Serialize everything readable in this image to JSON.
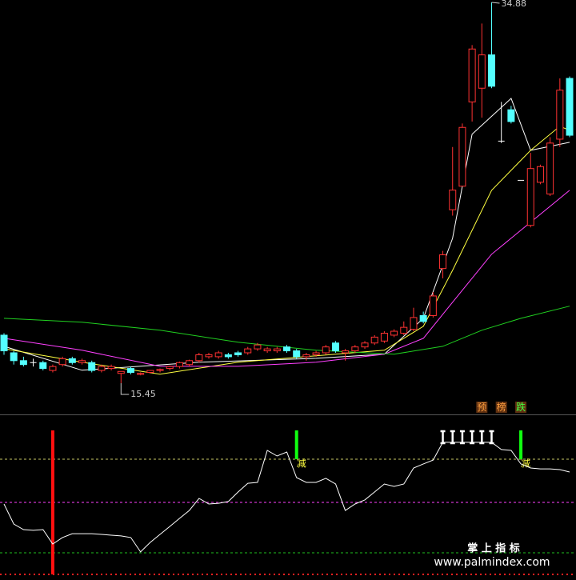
{
  "chart_data": [
    {
      "type": "candlestick",
      "ylim": [
        15,
        35
      ],
      "up_color": "#ff3232",
      "down_color": "#54ffff",
      "candles": [
        [
          17.9,
          18.0,
          16.9,
          17.1
        ],
        [
          17.0,
          17.1,
          16.4,
          16.6
        ],
        [
          16.6,
          16.8,
          16.3,
          16.4
        ],
        [
          16.5,
          16.7,
          16.3,
          16.5
        ],
        [
          16.5,
          16.6,
          16.1,
          16.2
        ],
        [
          16.1,
          16.4,
          16.0,
          16.3
        ],
        [
          16.4,
          16.8,
          16.3,
          16.7
        ],
        [
          16.7,
          16.8,
          16.4,
          16.5
        ],
        [
          16.5,
          16.7,
          16.4,
          16.6
        ],
        [
          16.5,
          16.6,
          16.0,
          16.1
        ],
        [
          16.1,
          16.4,
          16.0,
          16.3
        ],
        [
          16.2,
          16.4,
          16.1,
          16.3
        ],
        [
          15.95,
          16.05,
          15.45,
          16.05
        ],
        [
          16.2,
          16.3,
          15.9,
          16.0
        ],
        [
          15.9,
          16.0,
          15.85,
          15.95
        ],
        [
          16.0,
          16.1,
          15.95,
          16.1
        ],
        [
          16.1,
          16.2,
          16.0,
          16.15
        ],
        [
          16.2,
          16.35,
          16.1,
          16.3
        ],
        [
          16.3,
          16.55,
          16.2,
          16.5
        ],
        [
          16.4,
          16.65,
          16.3,
          16.6
        ],
        [
          16.6,
          17.0,
          16.5,
          16.9
        ],
        [
          16.8,
          17.0,
          16.7,
          16.9
        ],
        [
          16.8,
          17.1,
          16.7,
          17.0
        ],
        [
          16.9,
          17.0,
          16.7,
          16.8
        ],
        [
          17.0,
          17.1,
          16.8,
          16.9
        ],
        [
          17.0,
          17.3,
          16.9,
          17.2
        ],
        [
          17.2,
          17.5,
          17.1,
          17.4
        ],
        [
          17.1,
          17.3,
          17.0,
          17.2
        ],
        [
          17.1,
          17.3,
          17.0,
          17.2
        ],
        [
          17.3,
          17.4,
          17.0,
          17.1
        ],
        [
          17.1,
          17.2,
          16.7,
          16.8
        ],
        [
          16.8,
          17.0,
          16.6,
          16.9
        ],
        [
          16.9,
          17.1,
          16.8,
          17.0
        ],
        [
          17.0,
          17.4,
          16.9,
          17.3
        ],
        [
          17.5,
          17.6,
          17.0,
          17.1
        ],
        [
          17.0,
          17.2,
          16.6,
          17.1
        ],
        [
          17.1,
          17.4,
          17.0,
          17.3
        ],
        [
          17.3,
          17.6,
          17.2,
          17.5
        ],
        [
          17.5,
          17.9,
          17.4,
          17.8
        ],
        [
          17.6,
          18.1,
          17.5,
          18.0
        ],
        [
          17.9,
          18.2,
          17.8,
          18.1
        ],
        [
          18.0,
          18.6,
          17.9,
          18.3
        ],
        [
          18.2,
          19.3,
          18.1,
          18.8
        ],
        [
          18.9,
          19.1,
          18.5,
          18.6
        ],
        [
          18.9,
          20.1,
          18.8,
          19.9
        ],
        [
          21.3,
          22.2,
          20.8,
          22.0
        ],
        [
          24.3,
          27.5,
          24.0,
          25.3
        ],
        [
          25.5,
          28.7,
          25.5,
          28.5
        ],
        [
          29.8,
          32.7,
          28.8,
          32.5
        ],
        [
          30.5,
          33.8,
          29.0,
          32.2
        ],
        [
          32.2,
          34.88,
          30.5,
          30.6
        ],
        [
          27.8,
          29.8,
          27.7,
          27.8
        ],
        [
          29.4,
          29.6,
          28.7,
          28.8
        ],
        [
          25.8,
          25.8,
          25.8,
          25.8
        ],
        [
          23.5,
          27.2,
          23.4,
          26.4
        ],
        [
          25.7,
          26.6,
          25.6,
          26.5
        ],
        [
          25.1,
          28.0,
          25.0,
          27.7
        ],
        [
          27.9,
          31.0,
          27.5,
          30.4
        ],
        [
          31.0,
          31.1,
          28.0,
          28.1
        ]
      ],
      "series": [
        {
          "color": "#ffffff",
          "x": [
            0,
            8,
            20,
            32,
            39,
            43,
            46,
            48,
            52,
            54,
            58
          ],
          "values": [
            17.33,
            16.11,
            16.52,
            16.72,
            16.93,
            18.76,
            22.84,
            28.15,
            29.98,
            27.33,
            27.74
          ]
        },
        {
          "color": "#ffff40",
          "x": [
            0,
            8,
            16,
            24,
            32,
            39,
            43,
            46,
            50,
            54,
            57,
            58
          ],
          "values": [
            17.21,
            16.52,
            15.91,
            16.52,
            16.85,
            17.13,
            18.35,
            21.21,
            25.29,
            27.33,
            28.56,
            28.35
          ]
        },
        {
          "color": "#ff40ff",
          "x": [
            0,
            8,
            16,
            24,
            32,
            39,
            43,
            46,
            50,
            54,
            58
          ],
          "values": [
            17.74,
            17.13,
            16.31,
            16.31,
            16.52,
            16.93,
            17.74,
            19.58,
            22.03,
            23.66,
            25.29
          ]
        },
        {
          "color": "#20d020",
          "x": [
            0,
            8,
            16,
            24,
            32,
            40,
            45,
            49,
            53,
            58
          ],
          "values": [
            18.76,
            18.56,
            18.15,
            17.54,
            17.13,
            16.93,
            17.33,
            18.15,
            18.76,
            19.38
          ]
        }
      ],
      "tags": [
        {
          "x": 49,
          "label": "预",
          "color": "#ffa040"
        },
        {
          "x": 51,
          "label": "榜",
          "color": "#ffa040"
        },
        {
          "x": 53,
          "label": "跌",
          "color": "#40ff40"
        }
      ]
    },
    {
      "type": "line",
      "ylim": [
        0,
        100
      ],
      "color": "#ffffff",
      "values": [
        48.9,
        35,
        31.1,
        30.6,
        31.1,
        21.1,
        25.6,
        28.3,
        28.3,
        28.3,
        27.8,
        27.2,
        26.7,
        25.6,
        15.6,
        22.2,
        27.8,
        33.3,
        38.9,
        44.4,
        52.8,
        48.9,
        49.4,
        50.6,
        57.2,
        63.3,
        63.9,
        86.1,
        82.2,
        85,
        67.2,
        63.9,
        63.9,
        66.7,
        62.8,
        44.4,
        48.9,
        51.7,
        57.2,
        62.8,
        61.1,
        62.8,
        73.9,
        76.7,
        79.4,
        91.7,
        91.7,
        91.7,
        91.7,
        91.7,
        91.7,
        86.7,
        86.1,
        76.7,
        73.9,
        73.3,
        73.3,
        72.8,
        71.1
      ],
      "levels": [
        {
          "value": 80,
          "color": "#c8c864"
        },
        {
          "value": 50,
          "color": "#ff40ff"
        },
        {
          "value": 15,
          "color": "#20c020"
        },
        {
          "value": 0,
          "color": "#ff2020"
        }
      ],
      "signals": [
        {
          "x": 5,
          "low": 0,
          "high": 100,
          "color": "#ff1010"
        },
        {
          "x": 30,
          "low": 80,
          "high": 100,
          "color": "#10ff10",
          "label": "减"
        },
        {
          "x": 53,
          "low": 80,
          "high": 100,
          "color": "#10ff10",
          "label": "减"
        }
      ],
      "markers": {
        "x": [
          45,
          46,
          47,
          48,
          49,
          50
        ],
        "color": "#ffffff"
      }
    }
  ],
  "watermark": {
    "title": "掌 上 指 标",
    "url": "www.palmindex.com"
  }
}
